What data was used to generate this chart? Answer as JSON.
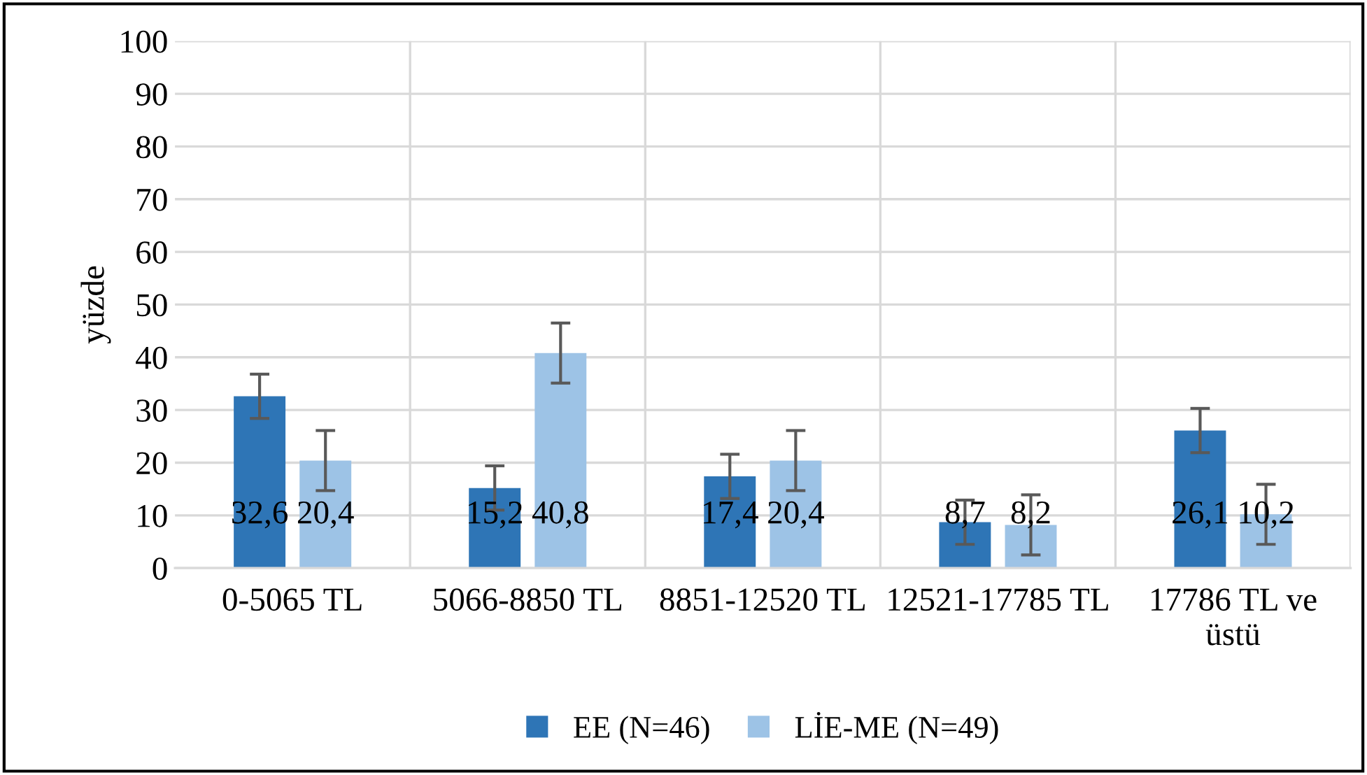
{
  "chart_data": {
    "type": "bar",
    "ylabel": "yüzde",
    "categories": [
      "0-5065 TL",
      "5066-8850 TL",
      "8851-12520 TL",
      "12521-17785 TL",
      "17786 TL ve\nüstü"
    ],
    "series": [
      {
        "name": "EE (N=46)",
        "color": "#2e75b6",
        "values": [
          32.6,
          15.2,
          17.4,
          8.7,
          26.1
        ],
        "errors": [
          4.2,
          4.2,
          4.2,
          4.2,
          4.2
        ],
        "value_labels": [
          "32,6",
          "15,2",
          "17,4",
          "8,7",
          "26,1"
        ]
      },
      {
        "name": "LİE-ME (N=49)",
        "color": "#9dc3e6",
        "values": [
          20.4,
          40.8,
          20.4,
          8.2,
          10.2
        ],
        "errors": [
          5.7,
          5.7,
          5.7,
          5.7,
          5.7
        ],
        "value_labels": [
          "20,4",
          "40,8",
          "20,4",
          "8,2",
          "10,2"
        ]
      }
    ],
    "ylim": [
      0,
      100
    ],
    "yticks": [
      0,
      10,
      20,
      30,
      40,
      50,
      60,
      70,
      80,
      90,
      100
    ],
    "grid": true,
    "legend": "bottom"
  }
}
